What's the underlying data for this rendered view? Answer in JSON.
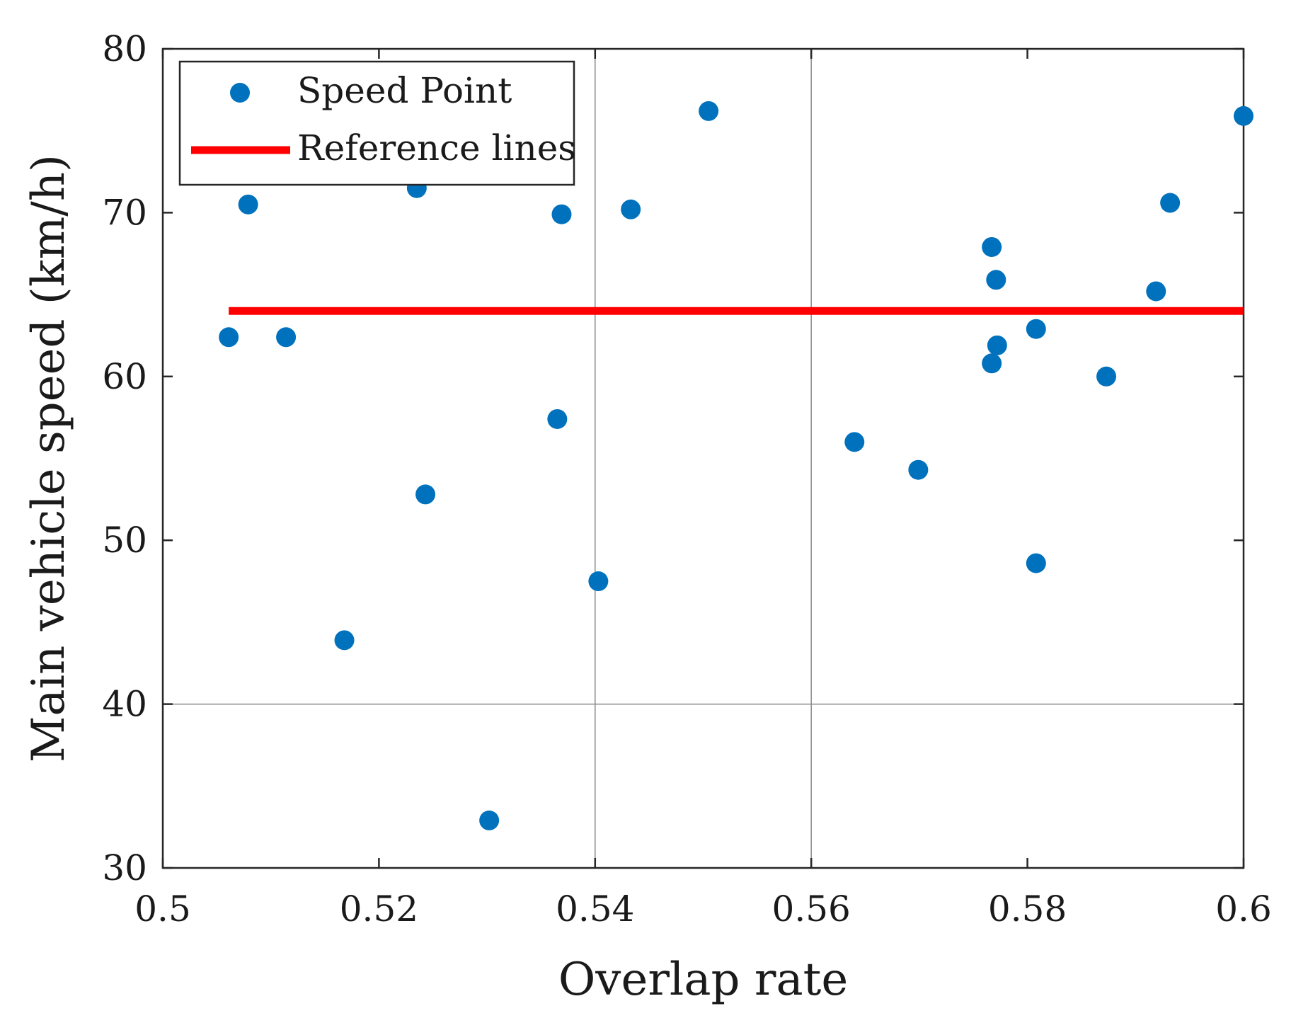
{
  "chart_data": {
    "type": "scatter",
    "title": "",
    "xlabel": "Overlap rate",
    "ylabel": "Main vehicle speed (km/h)",
    "xlim": [
      0.5,
      0.6
    ],
    "ylim": [
      30,
      80
    ],
    "xticks": [
      0.5,
      0.52,
      0.54,
      0.56,
      0.58,
      0.6
    ],
    "xtick_labels": [
      "0.5",
      "0.52",
      "0.54",
      "0.56",
      "0.58",
      "0.6"
    ],
    "yticks": [
      30,
      40,
      50,
      60,
      70,
      80
    ],
    "ytick_labels": [
      "30",
      "40",
      "50",
      "60",
      "70",
      "80"
    ],
    "grid": {
      "x": [
        0.54,
        0.56
      ],
      "y": [
        40
      ]
    },
    "legend_position": "top-left",
    "series": [
      {
        "name": "Speed Point",
        "kind": "scatter",
        "color": "#0072BD",
        "points": [
          [
            0.5061,
            62.4
          ],
          [
            0.5079,
            70.5
          ],
          [
            0.5114,
            62.4
          ],
          [
            0.5168,
            43.9
          ],
          [
            0.5235,
            71.5
          ],
          [
            0.5243,
            52.8
          ],
          [
            0.5302,
            32.9
          ],
          [
            0.5365,
            57.4
          ],
          [
            0.5369,
            69.9
          ],
          [
            0.5403,
            47.5
          ],
          [
            0.5433,
            70.2
          ],
          [
            0.5505,
            76.2
          ],
          [
            0.564,
            56.0
          ],
          [
            0.5699,
            54.3
          ],
          [
            0.5767,
            67.9
          ],
          [
            0.5771,
            65.9
          ],
          [
            0.5772,
            61.9
          ],
          [
            0.5767,
            60.8
          ],
          [
            0.5808,
            62.9
          ],
          [
            0.5808,
            48.6
          ],
          [
            0.5873,
            60.0
          ],
          [
            0.5919,
            65.2
          ],
          [
            0.5932,
            70.6
          ],
          [
            0.6,
            75.9
          ]
        ]
      },
      {
        "name": "Reference lines",
        "kind": "line",
        "color": "#FF0000",
        "x": [
          0.5061,
          0.6
        ],
        "y": [
          64,
          64
        ]
      }
    ]
  }
}
